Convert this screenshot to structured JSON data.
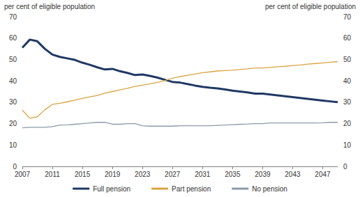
{
  "chart_data": {
    "type": "line",
    "y_label": "per cent of eligible population",
    "y2_label": "per cent of eligible population",
    "x": [
      2007,
      2008,
      2009,
      2010,
      2011,
      2012,
      2013,
      2014,
      2015,
      2016,
      2017,
      2018,
      2019,
      2020,
      2021,
      2022,
      2023,
      2024,
      2025,
      2026,
      2027,
      2028,
      2029,
      2030,
      2031,
      2032,
      2033,
      2034,
      2035,
      2036,
      2037,
      2038,
      2039,
      2040,
      2041,
      2042,
      2043,
      2044,
      2045,
      2046,
      2047,
      2048,
      2049
    ],
    "series": [
      {
        "name": "Full pension",
        "color": "#1f3864",
        "values": [
          55.5,
          59.3,
          58.5,
          55,
          52.3,
          51.2,
          50.5,
          49.8,
          48.5,
          47.5,
          46.3,
          45.3,
          45.6,
          44.5,
          43.7,
          42.7,
          43,
          42.3,
          41.5,
          40.5,
          39.5,
          39.2,
          38.5,
          37.8,
          37.2,
          36.8,
          36.5,
          36,
          35.4,
          35,
          34.6,
          34,
          34,
          33.6,
          33.2,
          32.8,
          32.4,
          32,
          31.6,
          31.2,
          30.8,
          30.4,
          30
        ]
      },
      {
        "name": "Part pension",
        "color": "#d9a441",
        "values": [
          26.3,
          22.5,
          23.2,
          26.5,
          29,
          29.5,
          30.2,
          31,
          31.8,
          32.5,
          33.2,
          34.2,
          35,
          35.8,
          36.5,
          37.4,
          38,
          38.6,
          39.3,
          40.2,
          41.2,
          42,
          42.6,
          43.2,
          43.8,
          44.2,
          44.6,
          44.8,
          45,
          45.3,
          45.6,
          46,
          46,
          46.3,
          46.6,
          46.8,
          47.2,
          47.4,
          47.8,
          48.1,
          48.4,
          48.7,
          49
        ]
      },
      {
        "name": "No pension",
        "color": "#8a9aa9",
        "values": [
          18,
          18.3,
          18.3,
          18.3,
          18.6,
          19.3,
          19.4,
          19.7,
          20,
          20.3,
          20.6,
          20.6,
          19.7,
          19.7,
          20,
          20,
          19,
          18.8,
          18.8,
          18.8,
          18.8,
          19,
          19,
          19,
          19,
          19,
          19.2,
          19.3,
          19.5,
          19.7,
          19.8,
          20,
          20,
          20.3,
          20.3,
          20.3,
          20.3,
          20.3,
          20.3,
          20.3,
          20.4,
          20.6,
          20.6
        ]
      }
    ],
    "xlim": [
      2007,
      2049
    ],
    "xticks": [
      2007,
      2011,
      2015,
      2019,
      2023,
      2027,
      2031,
      2035,
      2039,
      2043,
      2047
    ],
    "ylim": [
      0,
      70
    ],
    "yticks": [
      0,
      10,
      20,
      30,
      40,
      50,
      60,
      70
    ],
    "y2lim": [
      0,
      70
    ],
    "y2ticks": [
      0,
      10,
      20,
      30,
      40,
      50,
      60,
      70
    ],
    "grid": false,
    "legend": "bottom"
  }
}
